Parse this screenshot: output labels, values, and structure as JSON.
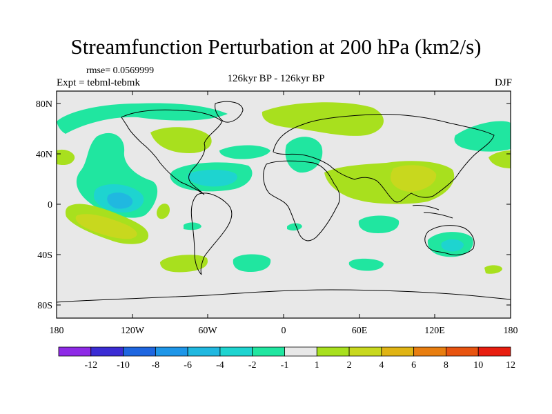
{
  "title": "Streamfunction Perturbation at 200 hPa (km2/s)",
  "rmse": "rmse= 0.0569999",
  "experiment": "Expt = tebml-tebmk",
  "center_label": "126kyr BP - 126kyr BP",
  "season": "DJF",
  "lat_labels": [
    "80N",
    "40N",
    "0",
    "40S",
    "80S"
  ],
  "lon_labels": [
    "180",
    "120W",
    "60W",
    "0",
    "60E",
    "120E",
    "180"
  ],
  "colorbar": {
    "labels": [
      "-12",
      "-10",
      "-8",
      "-6",
      "-4",
      "-2",
      "-1",
      "1",
      "2",
      "4",
      "6",
      "8",
      "10",
      "12"
    ],
    "colors": [
      "#8e2ae6",
      "#3b2cd4",
      "#1e66e0",
      "#1e96e8",
      "#20b8e0",
      "#1ed4d0",
      "#20e6a0",
      "#e8e8e8",
      "#a8e01e",
      "#c8d81e",
      "#e0b414",
      "#e87e10",
      "#e85410",
      "#e81e10"
    ]
  },
  "colors": {
    "ocean": "#e8e8e8",
    "neg_weak": "#20e6a0",
    "neg_mid": "#1ed4d0",
    "neg_strong": "#20b8e0",
    "pos_weak": "#a8e01e",
    "pos_mid": "#c8d81e",
    "pos_strong": "#e0b414"
  }
}
